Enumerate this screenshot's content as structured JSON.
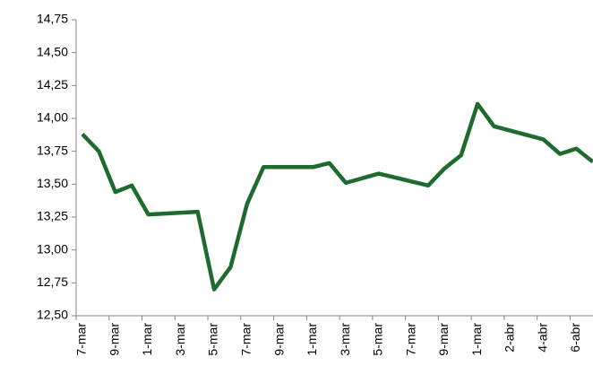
{
  "chart_data": {
    "type": "line",
    "categories": [
      "7-mar",
      null,
      "9-mar",
      null,
      "1-mar",
      null,
      "3-mar",
      null,
      "5-mar",
      null,
      "7-mar",
      null,
      "9-mar",
      null,
      "1-mar",
      null,
      "3-mar",
      null,
      "5-mar",
      null,
      "7-mar",
      null,
      "9-mar",
      null,
      "1-mar",
      null,
      "2-abr",
      null,
      "4-abr",
      null,
      "6-abr",
      null
    ],
    "series": [
      {
        "color": "#1e6b30",
        "values": [
          13.88,
          13.75,
          13.44,
          13.49,
          13.27,
          null,
          null,
          13.29,
          12.7,
          12.87,
          13.35,
          13.63,
          null,
          null,
          13.63,
          13.66,
          13.51,
          null,
          13.58,
          null,
          null,
          13.49,
          13.62,
          13.72,
          14.11,
          13.94,
          null,
          null,
          13.84,
          13.73,
          13.77,
          13.67
        ]
      }
    ],
    "connect_gaps": true,
    "ylim": [
      12.5,
      14.75
    ],
    "yticks": [
      {
        "value": 12.5,
        "label": "12,50"
      },
      {
        "value": 12.75,
        "label": "12,75"
      },
      {
        "value": 13,
        "label": "13,00"
      },
      {
        "value": 13.25,
        "label": "13,25"
      },
      {
        "value": 13.5,
        "label": "13,50"
      },
      {
        "value": 13.75,
        "label": "13,75"
      },
      {
        "value": 14,
        "label": "14,00"
      },
      {
        "value": 14.25,
        "label": "14,25"
      },
      {
        "value": 14.5,
        "label": "14,50"
      },
      {
        "value": 14.75,
        "label": "14,75"
      }
    ],
    "grid": false
  }
}
